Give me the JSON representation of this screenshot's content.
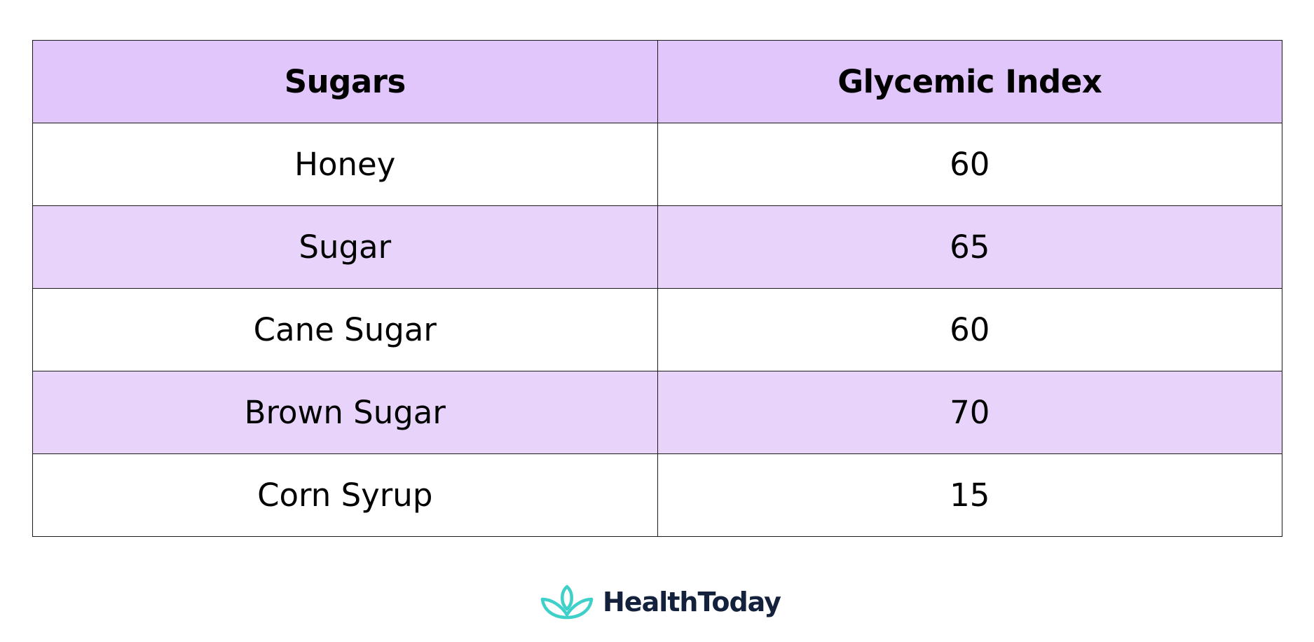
{
  "table": {
    "headers": [
      "Sugars",
      "Glycemic Index"
    ],
    "rows": [
      [
        "Honey",
        "60"
      ],
      [
        "Sugar",
        "65"
      ],
      [
        "Cane Sugar",
        "60"
      ],
      [
        "Brown Sugar",
        "70"
      ],
      [
        "Corn Syrup",
        "15"
      ]
    ]
  },
  "brand": {
    "name": "HealthToday",
    "icon": "lotus-icon",
    "icon_color": "#3fd0c9",
    "text_color": "#14213d"
  },
  "colors": {
    "header_bg": "#e1c6fb",
    "shaded_row_bg": "#e8d4fb",
    "border": "#1a1a1a"
  }
}
